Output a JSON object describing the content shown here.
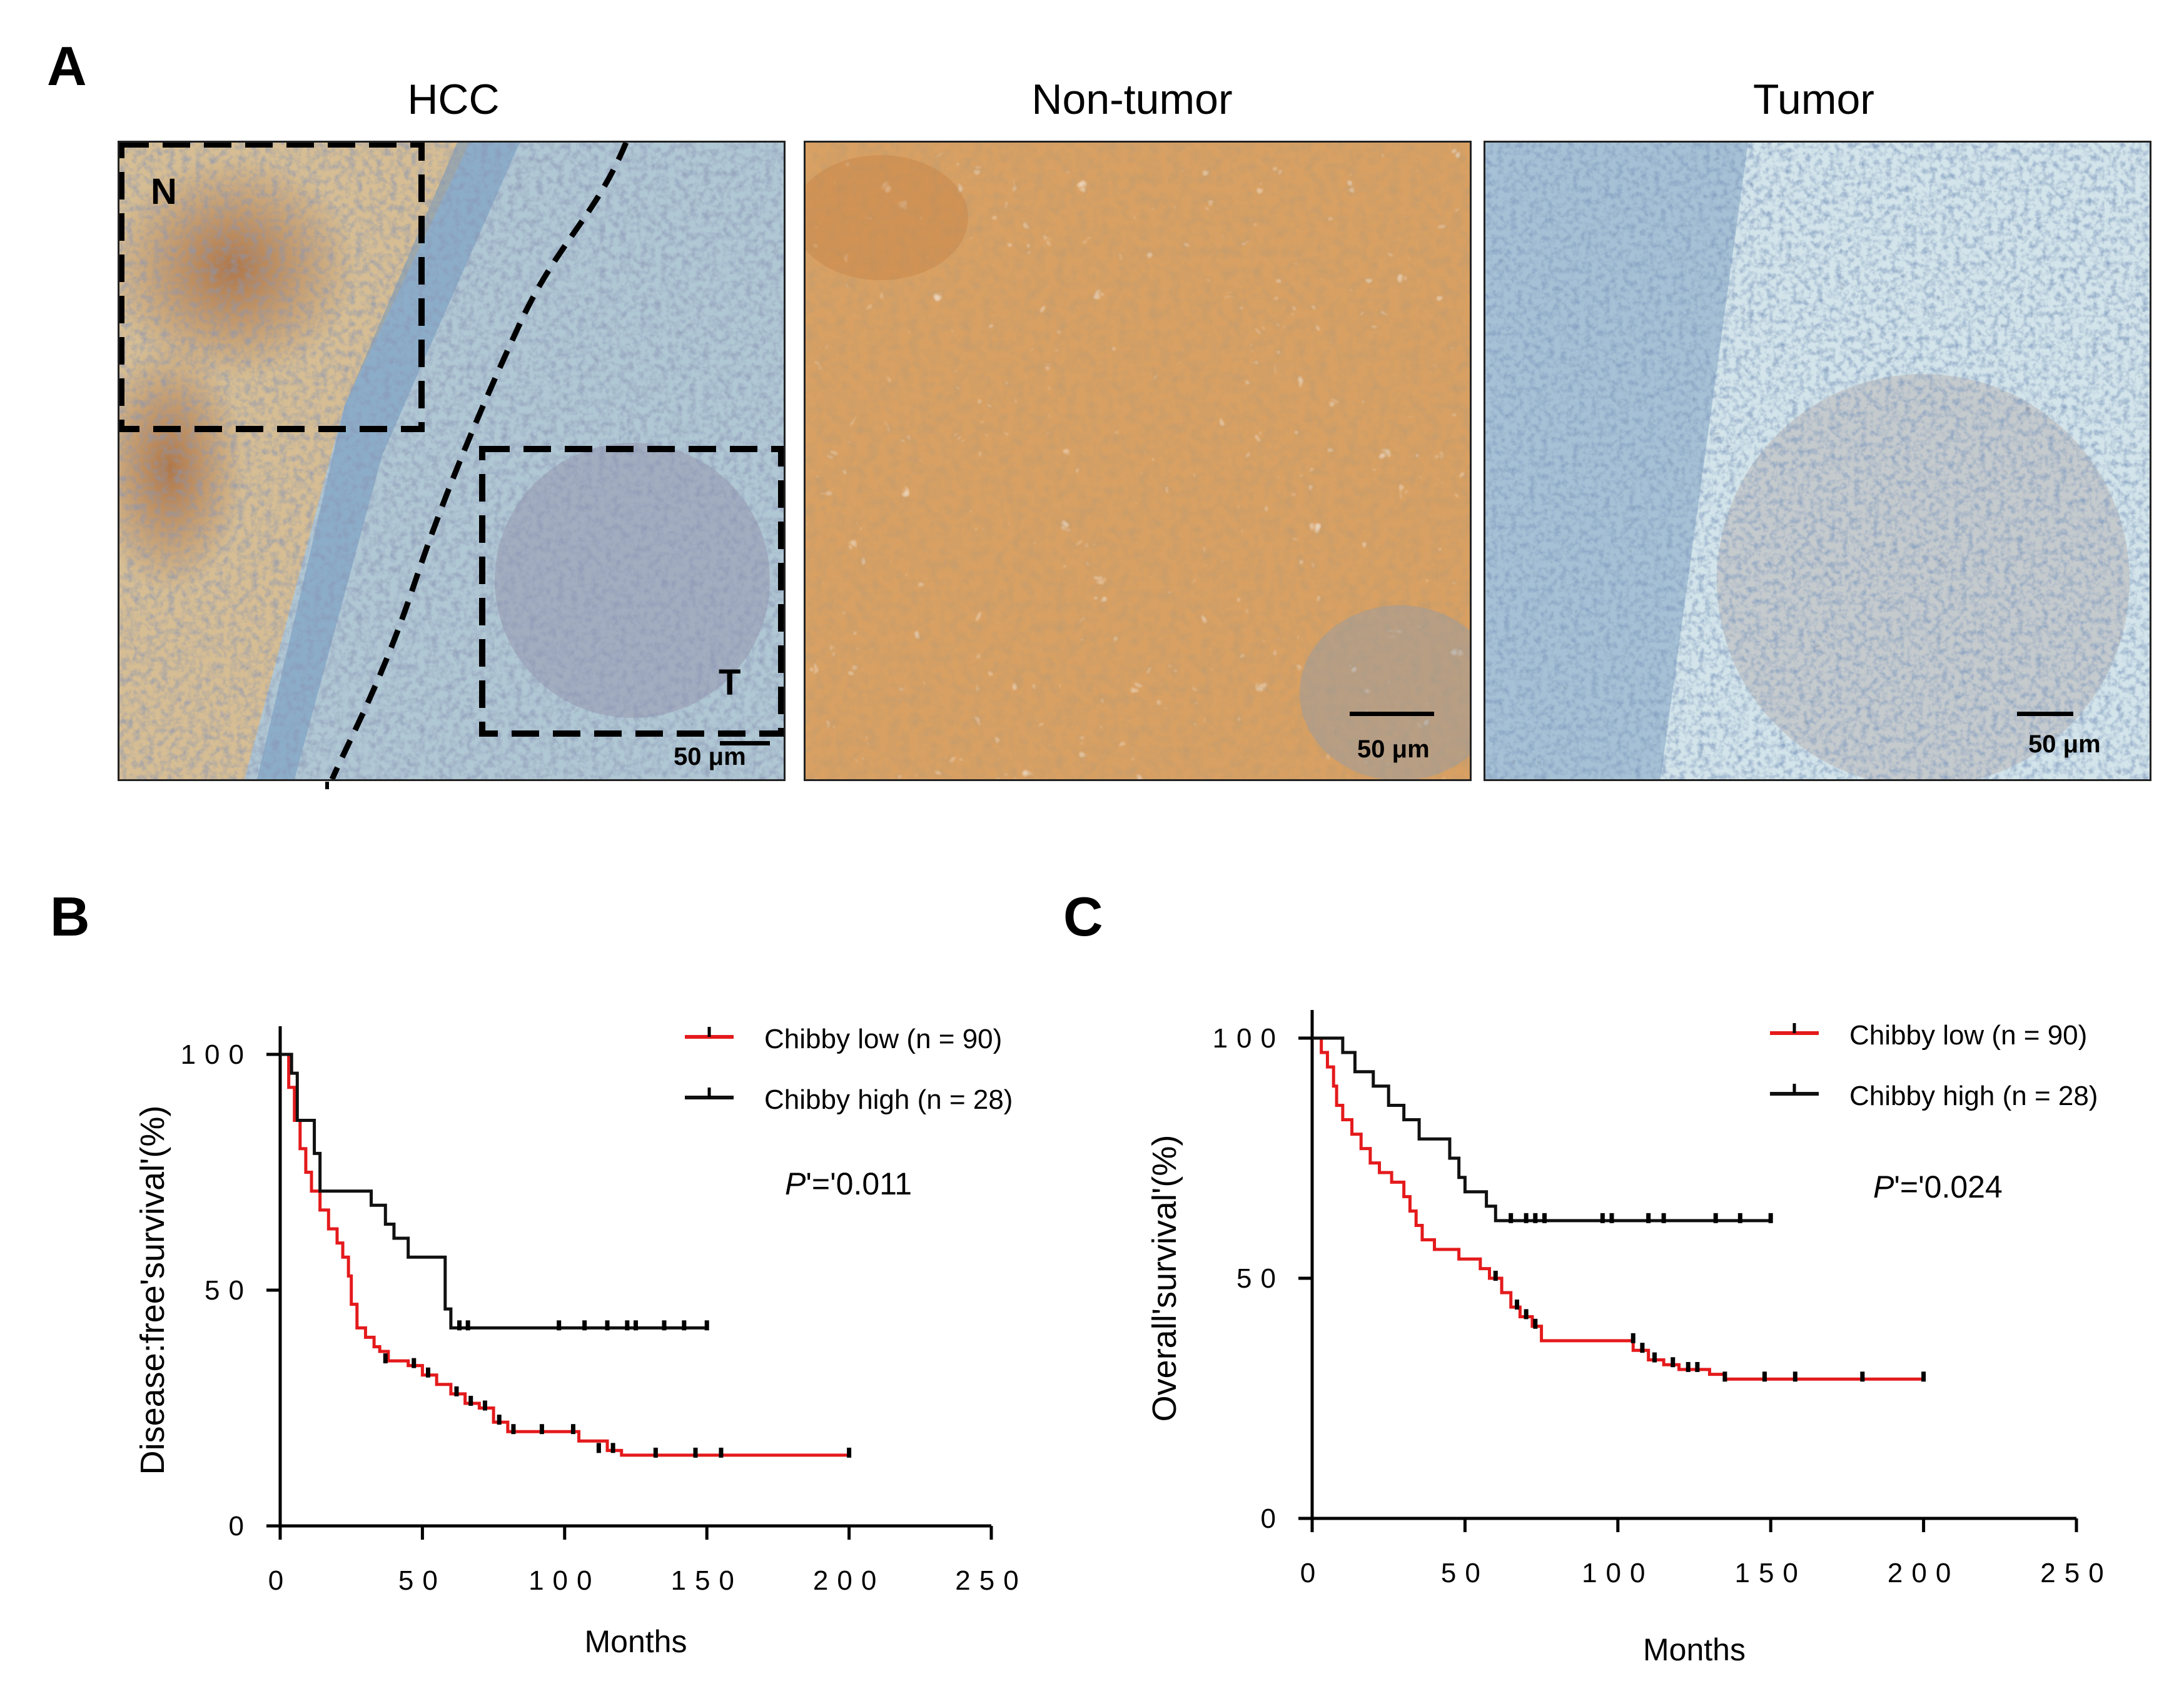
{
  "panels": {
    "a": "A",
    "b": "B",
    "c": "C"
  },
  "micrographs": {
    "hcc": {
      "title": "HCC",
      "scale_bar": "50 μm",
      "box_n_label": "N",
      "box_t_label": "T"
    },
    "non_tumor": {
      "title": "Non-tumor",
      "scale_bar": "50 μm"
    },
    "tumor": {
      "title": "Tumor",
      "scale_bar": "50 μm"
    }
  },
  "colors": {
    "low": "#e41a1c",
    "high": "#111111",
    "stain_brown": "#c8894a",
    "stain_blue": "#5f86b0"
  },
  "chart_data": [
    {
      "type": "line",
      "subtype": "kaplan-meier",
      "ylabel": "Disease:free'survival'(%)",
      "xlabel": "Months",
      "xlim": [
        0,
        250
      ],
      "ylim": [
        0,
        100
      ],
      "x_ticks": [
        "0",
        "50",
        "100",
        "150",
        "200",
        "250"
      ],
      "y_ticks": [
        "0",
        "50",
        "100"
      ],
      "p_label": "P",
      "p_text": "'='0.011",
      "legend_position": "top-right",
      "series": [
        {
          "name": "Chibby low (n = 90)",
          "color_key": "low",
          "steps": [
            [
              0,
              100
            ],
            [
              3,
              93
            ],
            [
              5,
              86
            ],
            [
              7,
              80
            ],
            [
              9,
              75
            ],
            [
              11,
              71
            ],
            [
              14,
              67
            ],
            [
              17,
              63
            ],
            [
              20,
              60
            ],
            [
              22,
              57
            ],
            [
              24,
              53
            ],
            [
              25,
              47
            ],
            [
              27,
              42
            ],
            [
              30,
              40
            ],
            [
              33,
              38
            ],
            [
              35,
              37
            ],
            [
              38,
              35
            ],
            [
              45,
              34
            ],
            [
              50,
              32
            ],
            [
              55,
              30
            ],
            [
              60,
              28
            ],
            [
              65,
              26
            ],
            [
              70,
              25
            ],
            [
              75,
              22
            ],
            [
              80,
              20
            ],
            [
              90,
              20
            ],
            [
              100,
              20
            ],
            [
              105,
              18
            ],
            [
              115,
              16
            ],
            [
              120,
              15
            ],
            [
              200,
              15
            ]
          ],
          "censors": [
            [
              37,
              35
            ],
            [
              47,
              34
            ],
            [
              52,
              32
            ],
            [
              62,
              28
            ],
            [
              67,
              26
            ],
            [
              72,
              25
            ],
            [
              77,
              22
            ],
            [
              82,
              20
            ],
            [
              92,
              20
            ],
            [
              103,
              20
            ],
            [
              112,
              16
            ],
            [
              117,
              16
            ],
            [
              132,
              15
            ],
            [
              146,
              15
            ],
            [
              155,
              15
            ],
            [
              200,
              15
            ]
          ]
        },
        {
          "name": "Chibby high (n = 28)",
          "color_key": "high",
          "steps": [
            [
              0,
              100
            ],
            [
              4,
              96
            ],
            [
              6,
              86
            ],
            [
              12,
              79
            ],
            [
              14,
              71
            ],
            [
              32,
              68
            ],
            [
              37,
              64
            ],
            [
              40,
              61
            ],
            [
              45,
              57
            ],
            [
              57,
              57
            ],
            [
              58,
              46
            ],
            [
              60,
              42
            ],
            [
              150,
              42
            ]
          ],
          "censors": [
            [
              63,
              42
            ],
            [
              66,
              42
            ],
            [
              98,
              42
            ],
            [
              107,
              42
            ],
            [
              115,
              42
            ],
            [
              122,
              42
            ],
            [
              125,
              42
            ],
            [
              135,
              42
            ],
            [
              142,
              42
            ],
            [
              150,
              42
            ]
          ]
        }
      ]
    },
    {
      "type": "line",
      "subtype": "kaplan-meier",
      "ylabel": "Overall'survival'(%)",
      "xlabel": "Months",
      "xlim": [
        0,
        250
      ],
      "ylim": [
        0,
        100
      ],
      "x_ticks": [
        "0",
        "50",
        "100",
        "150",
        "200",
        "250"
      ],
      "y_ticks": [
        "0",
        "50",
        "100"
      ],
      "p_label": "P",
      "p_text": "'='0.024",
      "legend_position": "top-right",
      "series": [
        {
          "name": "Chibby low (n = 90)",
          "color_key": "low",
          "steps": [
            [
              0,
              100
            ],
            [
              3,
              97
            ],
            [
              5,
              94
            ],
            [
              7,
              90
            ],
            [
              8,
              86
            ],
            [
              10,
              83
            ],
            [
              13,
              80
            ],
            [
              16,
              77
            ],
            [
              19,
              74
            ],
            [
              22,
              72
            ],
            [
              26,
              70
            ],
            [
              30,
              67
            ],
            [
              32,
              64
            ],
            [
              34,
              61
            ],
            [
              36,
              58
            ],
            [
              40,
              56
            ],
            [
              48,
              54
            ],
            [
              55,
              52
            ],
            [
              58,
              50
            ],
            [
              62,
              47
            ],
            [
              65,
              44
            ],
            [
              68,
              42
            ],
            [
              72,
              40
            ],
            [
              75,
              37
            ],
            [
              90,
              37
            ],
            [
              100,
              37
            ],
            [
              105,
              35
            ],
            [
              110,
              33
            ],
            [
              115,
              32
            ],
            [
              120,
              31
            ],
            [
              130,
              30
            ],
            [
              135,
              29
            ],
            [
              200,
              29
            ]
          ],
          "censors": [
            [
              60,
              50
            ],
            [
              67,
              44
            ],
            [
              70,
              42
            ],
            [
              73,
              40
            ],
            [
              105,
              37
            ],
            [
              108,
              35
            ],
            [
              112,
              33
            ],
            [
              118,
              32
            ],
            [
              123,
              31
            ],
            [
              126,
              31
            ],
            [
              135,
              29
            ],
            [
              148,
              29
            ],
            [
              158,
              29
            ],
            [
              180,
              29
            ],
            [
              200,
              29
            ]
          ]
        },
        {
          "name": "Chibby high (n = 28)",
          "color_key": "high",
          "steps": [
            [
              0,
              100
            ],
            [
              10,
              97
            ],
            [
              14,
              93
            ],
            [
              20,
              90
            ],
            [
              25,
              86
            ],
            [
              30,
              83
            ],
            [
              35,
              79
            ],
            [
              45,
              75
            ],
            [
              48,
              71
            ],
            [
              50,
              68
            ],
            [
              57,
              65
            ],
            [
              60,
              62
            ],
            [
              150,
              62
            ]
          ],
          "censors": [
            [
              65,
              62
            ],
            [
              70,
              62
            ],
            [
              73,
              62
            ],
            [
              76,
              62
            ],
            [
              95,
              62
            ],
            [
              98,
              62
            ],
            [
              110,
              62
            ],
            [
              115,
              62
            ],
            [
              132,
              62
            ],
            [
              140,
              62
            ],
            [
              150,
              62
            ]
          ]
        }
      ]
    }
  ]
}
